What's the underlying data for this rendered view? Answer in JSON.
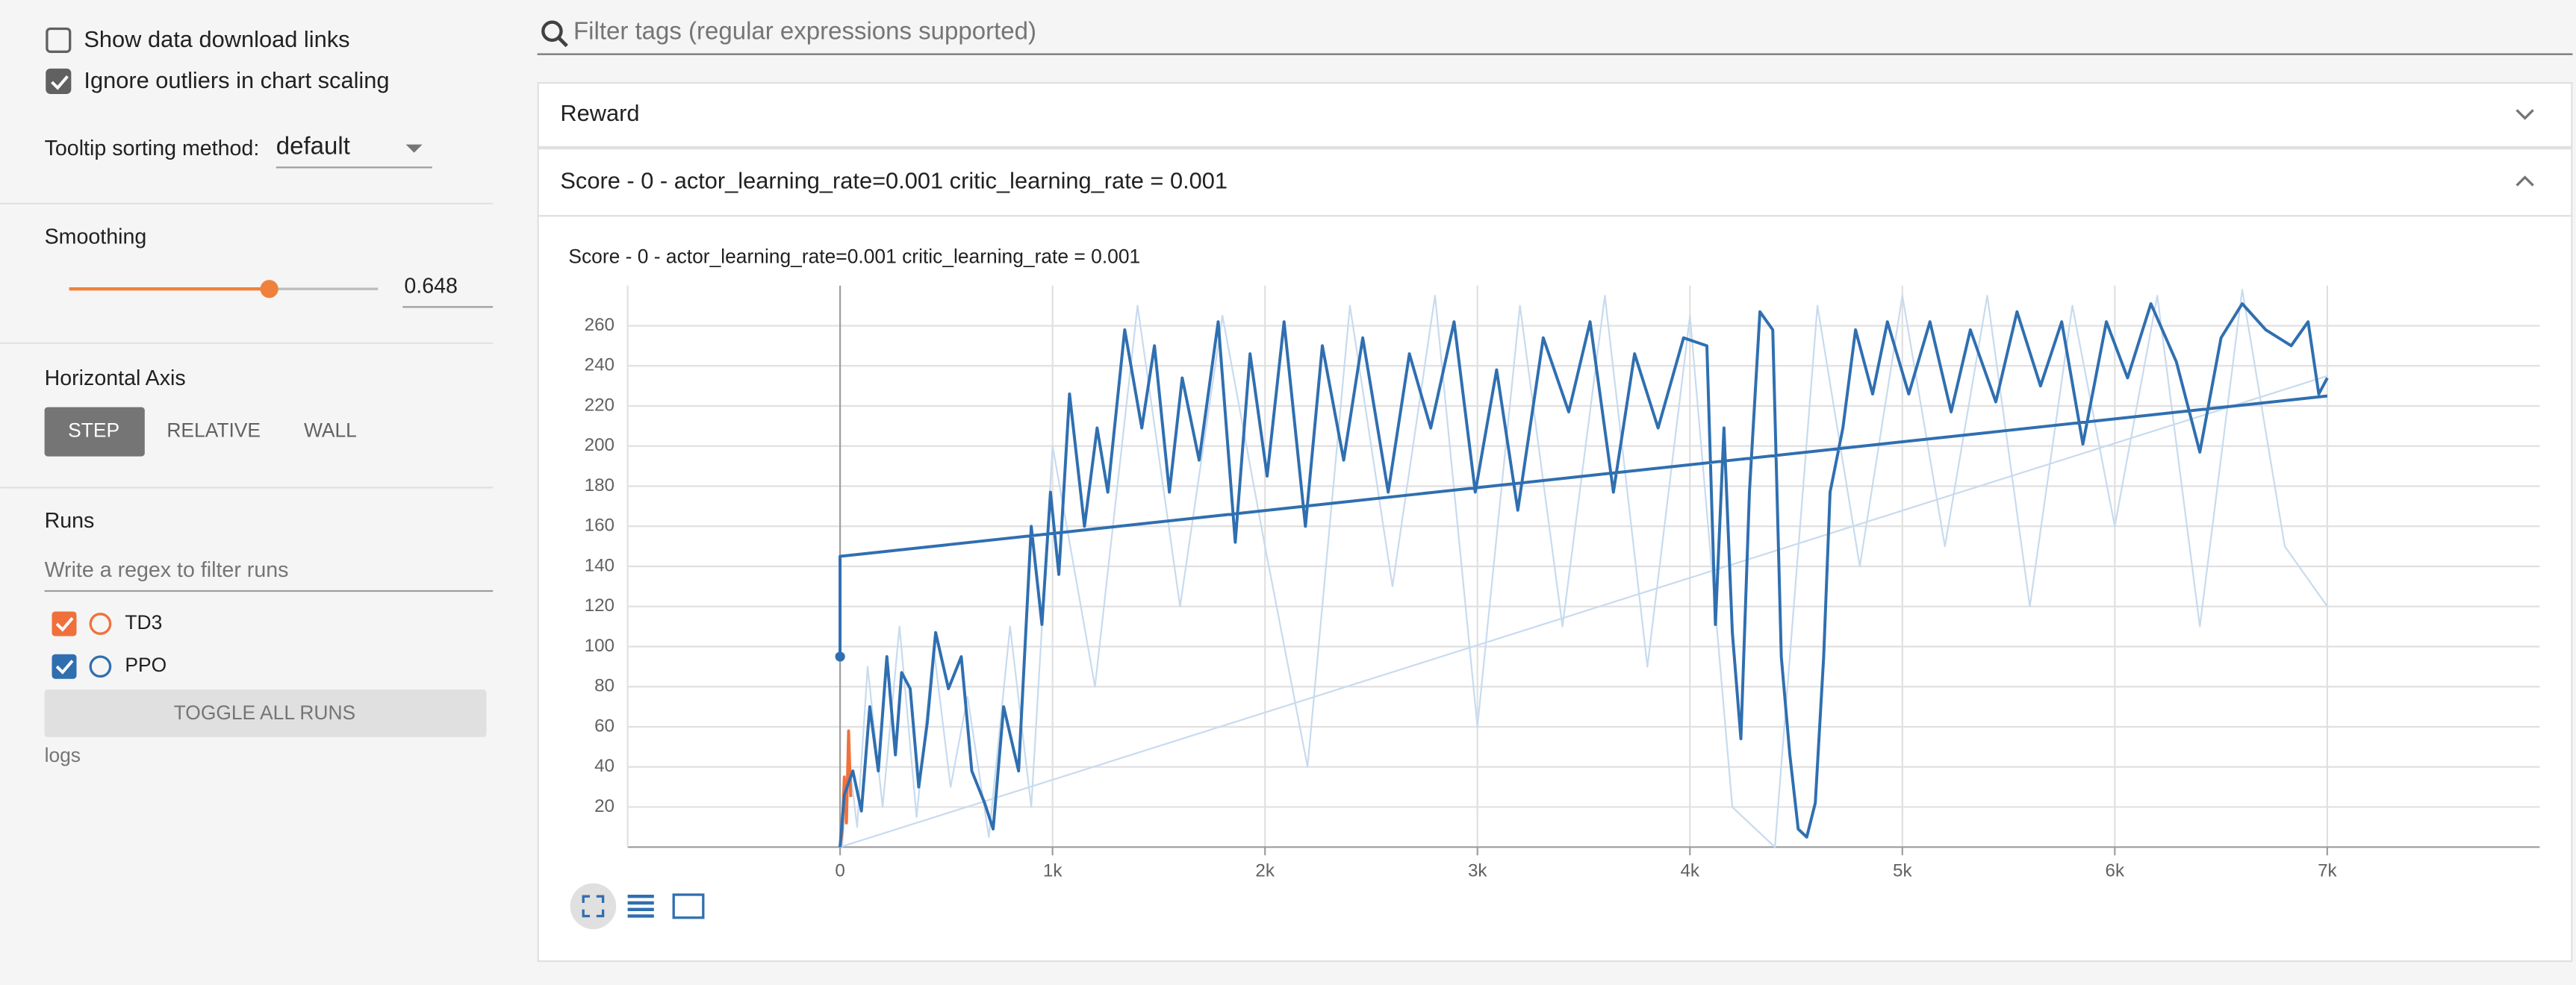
{
  "sidebar": {
    "checkboxes": [
      {
        "label": "Show data download links",
        "checked": false
      },
      {
        "label": "Ignore outliers in chart scaling",
        "checked": true
      }
    ],
    "tooltip_label": "Tooltip sorting method:",
    "tooltip_value": "default",
    "smoothing_label": "Smoothing",
    "smoothing_value": 0.648,
    "horizontal_axis_label": "Horizontal Axis",
    "axis_buttons": [
      "STEP",
      "RELATIVE",
      "WALL"
    ],
    "selected_axis": "STEP",
    "runs_label": "Runs",
    "runs_placeholder": "Write a regex to filter runs",
    "toggle_button": "TOGGLE ALL RUNS",
    "logs": "logs"
  },
  "filter_placeholder": "Filter tags (regular expressions supported)",
  "sections": [
    "Reward"
  ],
  "chart_data": {
    "type": "line",
    "title": "Score - 0 - actor_learning_rate=0.001 critic_learning_rate = 0.001",
    "xlim": [
      -1000,
      8000
    ],
    "ylim": [
      0,
      280
    ],
    "xticks": [
      0,
      {
        "value": 1000,
        "label": "1k"
      },
      {
        "value": 2000,
        "label": "2k"
      },
      {
        "value": 3000,
        "label": "3k"
      },
      {
        "value": 4000,
        "label": "4k"
      },
      {
        "value": 5000,
        "label": "5k"
      },
      {
        "value": 6000,
        "label": "6k"
      },
      {
        "value": 7000,
        "label": "7k"
      }
    ],
    "yticks": [
      20,
      40,
      60,
      80,
      100,
      120,
      140,
      160,
      180,
      200,
      220,
      240,
      260
    ],
    "grid": true,
    "series": [
      {
        "name": "TD3",
        "color": "#f0703c",
        "x": [
          0,
          10,
          20,
          30,
          40,
          50
        ],
        "values": [
          0,
          8,
          35,
          12,
          58,
          25
        ]
      },
      {
        "name": "PPO",
        "color": "#2f6fb0",
        "x": [
          0,
          0,
          7000,
          7000,
          0,
          20,
          60,
          100,
          140,
          180,
          220,
          260,
          290,
          330,
          370,
          410,
          450,
          510,
          570,
          620,
          680,
          720,
          770,
          840,
          900,
          950,
          990,
          1030,
          1080,
          1150,
          1210,
          1260,
          1340,
          1420,
          1480,
          1550,
          1610,
          1690,
          1780,
          1860,
          1930,
          2010,
          2090,
          2190,
          2270,
          2370,
          2460,
          2580,
          2680,
          2780,
          2890,
          2990,
          3090,
          3190,
          3310,
          3430,
          3530,
          3640,
          3740,
          3850,
          3970,
          4080,
          4120,
          4160,
          4200,
          4240,
          4280,
          4330,
          4390,
          4430,
          4470,
          4510,
          4550,
          4590,
          4630,
          4660,
          4720,
          4780,
          4860,
          4930,
          5030,
          5130,
          5230,
          5320,
          5440,
          5540,
          5650,
          5750,
          5850,
          5960,
          6060,
          6170,
          6290,
          6400,
          6500,
          6600,
          6710,
          6830,
          6910,
          6960,
          7000
        ],
        "values": [
          95,
          145,
          225,
          null,
          0,
          26,
          38,
          18,
          70,
          38,
          95,
          46,
          87,
          79,
          30,
          62,
          107,
          79,
          95,
          38,
          22,
          9,
          70,
          38,
          160,
          111,
          177,
          136,
          226,
          160,
          209,
          177,
          258,
          209,
          250,
          177,
          234,
          193,
          262,
          152,
          246,
          185,
          262,
          160,
          250,
          193,
          254,
          177,
          246,
          209,
          262,
          177,
          238,
          168,
          254,
          217,
          262,
          177,
          246,
          209,
          254,
          250,
          111,
          209,
          107,
          54,
          177,
          267,
          258,
          95,
          46,
          9,
          5,
          22,
          95,
          177,
          209,
          258,
          226,
          262,
          226,
          262,
          217,
          258,
          222,
          267,
          230,
          262,
          201,
          262,
          234,
          271,
          242,
          197,
          254,
          271,
          258,
          250,
          262,
          226,
          234
        ]
      },
      {
        "color": "#c8dbee",
        "x": [
          0,
          7000,
          7000,
          10,
          40,
          80,
          130,
          200,
          280,
          360,
          440,
          520,
          600,
          700,
          800,
          900,
          1000,
          1200,
          1400,
          1600,
          1800,
          2000,
          2200,
          2400,
          2600,
          2800,
          3000,
          3200,
          3400,
          3600,
          3800,
          4000,
          4200,
          4400,
          4600,
          4800,
          5000,
          5200,
          5400,
          5600,
          5800,
          6000,
          6200,
          6400,
          6600,
          6800,
          7000
        ],
        "values": [
          0,
          235,
          null,
          0,
          45,
          10,
          90,
          20,
          110,
          15,
          100,
          30,
          75,
          5,
          110,
          20,
          200,
          80,
          270,
          120,
          265,
          150,
          40,
          270,
          130,
          275,
          60,
          270,
          110,
          275,
          90,
          265,
          20,
          0,
          270,
          140,
          275,
          150,
          275,
          120,
          270,
          160,
          275,
          110,
          278,
          150,
          120
        ]
      }
    ]
  }
}
